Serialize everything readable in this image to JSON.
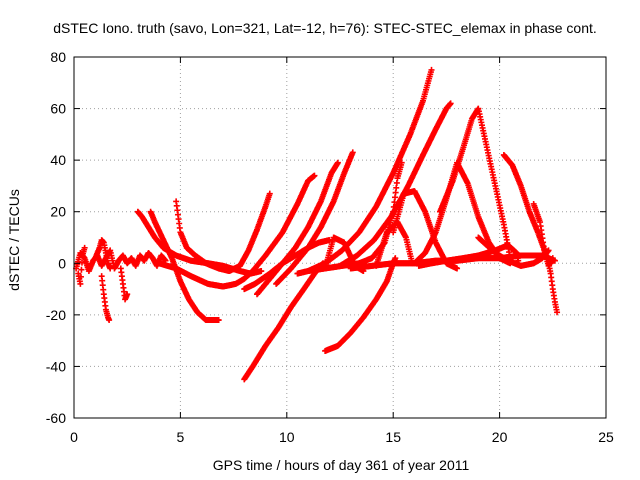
{
  "chart_data": {
    "type": "scatter",
    "title": "dSTEC Iono. truth (savo, Lon=321, Lat=-12, h=76): STEC-STEC_elemax in phase cont.",
    "xlabel": "GPS time / hours of day 361 of year 2011",
    "ylabel": "dSTEC  / TECUs",
    "xlim": [
      0,
      25
    ],
    "ylim": [
      -60,
      80
    ],
    "xticks": [
      0,
      5,
      10,
      15,
      20,
      25
    ],
    "yticks": [
      -60,
      -40,
      -20,
      0,
      20,
      40,
      60,
      80
    ],
    "grid": true,
    "marker": "+",
    "colors": {
      "series": "#ff0000",
      "grid": "#a0a0a0"
    },
    "series": [
      {
        "x": [
          0.1,
          0.3,
          0.5,
          0.7,
          0.9,
          1.1,
          1.3,
          1.5,
          1.7,
          1.9,
          2.1,
          2.3,
          2.5,
          2.7,
          2.9,
          3.1,
          3.3,
          3.5,
          3.7,
          3.9,
          4.1,
          4.3
        ],
        "y": [
          -2,
          4,
          2,
          -3,
          1,
          3,
          -1,
          2,
          5,
          -2,
          1,
          3,
          0,
          2,
          -1,
          3,
          1,
          4,
          2,
          -1,
          3,
          1
        ]
      },
      {
        "x": [
          0.2,
          0.3,
          0.4,
          0.5
        ],
        "y": [
          -4,
          -8,
          3,
          6
        ]
      },
      {
        "x": [
          1.3,
          1.4,
          1.5,
          1.6,
          1.65
        ],
        "y": [
          -5,
          -12,
          -18,
          -21,
          -22
        ]
      },
      {
        "x": [
          1.0,
          1.2,
          1.3,
          1.4,
          1.5,
          1.6,
          1.7
        ],
        "y": [
          2,
          6,
          9,
          8,
          4,
          0,
          -2
        ]
      },
      {
        "x": [
          2.2,
          2.3,
          2.4,
          2.5
        ],
        "y": [
          -2,
          -8,
          -14,
          -12
        ]
      },
      {
        "x": [
          3.0,
          3.2,
          3.5,
          3.8,
          4.2,
          4.8,
          5.5,
          6.3,
          7.0,
          7.8,
          8.3,
          8.8
        ],
        "y": [
          20,
          18,
          14,
          10,
          6,
          3,
          1,
          0,
          -1,
          -3,
          -4,
          -3
        ]
      },
      {
        "x": [
          3.6,
          3.8,
          4.2,
          4.6,
          5.0,
          5.4,
          5.8,
          6.2,
          6.6,
          6.8
        ],
        "y": [
          20,
          16,
          9,
          2,
          -7,
          -14,
          -19,
          -22,
          -22,
          -22
        ]
      },
      {
        "x": [
          4.8,
          5.0,
          5.3,
          5.7,
          6.2,
          6.8,
          7.3,
          7.8,
          8.2,
          8.6,
          9.0,
          9.2
        ],
        "y": [
          24,
          12,
          6,
          3,
          0,
          -2,
          -3,
          -1,
          5,
          13,
          22,
          27
        ]
      },
      {
        "x": [
          4.0,
          4.8,
          5.5,
          6.3,
          7.0,
          7.6,
          8.0,
          8.4,
          9.0,
          9.8,
          10.5,
          11.0,
          11.3
        ],
        "y": [
          0,
          -2,
          -5,
          -8,
          -9,
          -8,
          -6,
          -3,
          3,
          12,
          23,
          32,
          34
        ]
      },
      {
        "x": [
          8.0,
          8.4,
          9.0,
          9.6,
          10.2,
          10.8,
          11.3,
          11.7
        ],
        "y": [
          -45,
          -40,
          -32,
          -25,
          -17,
          -10,
          -4,
          0
        ]
      },
      {
        "x": [
          8.0,
          8.5,
          9.2,
          9.8,
          10.4,
          11.0,
          11.5,
          12.0
        ],
        "y": [
          -10,
          -8,
          -4,
          0,
          3,
          6,
          8,
          9
        ]
      },
      {
        "x": [
          8.6,
          9.2,
          9.8,
          10.4,
          11.0,
          11.6,
          12.1,
          12.4
        ],
        "y": [
          -12,
          -6,
          0,
          6,
          14,
          24,
          35,
          39
        ]
      },
      {
        "x": [
          9.5,
          10.2,
          11.0,
          11.6,
          12.2,
          12.7,
          13.1
        ],
        "y": [
          -8,
          -2,
          6,
          14,
          24,
          35,
          43
        ]
      },
      {
        "x": [
          11.8,
          12.4,
          13.0,
          13.6,
          14.2,
          14.7,
          15.0,
          15.1
        ],
        "y": [
          -34,
          -32,
          -27,
          -21,
          -14,
          -7,
          0,
          2
        ]
      },
      {
        "x": [
          10.5,
          11.0,
          11.8,
          12.6,
          13.4,
          14.0,
          14.6,
          15.0,
          15.2,
          15.4
        ],
        "y": [
          -4,
          -3,
          -2,
          -1,
          0,
          2,
          8,
          20,
          33,
          39
        ]
      },
      {
        "x": [
          11.0,
          11.8,
          12.6,
          13.4,
          14.2,
          15.0,
          15.8,
          16.4,
          16.8
        ],
        "y": [
          -3,
          0,
          5,
          12,
          22,
          35,
          50,
          63,
          75
        ]
      },
      {
        "x": [
          12.5,
          13.3,
          14.1,
          14.9,
          15.7,
          16.4,
          17.0,
          17.5,
          17.7
        ],
        "y": [
          -1,
          3,
          9,
          18,
          30,
          42,
          52,
          60,
          62
        ]
      },
      {
        "x": [
          11.8,
          12.2,
          12.7,
          13.2,
          13.6
        ],
        "y": [
          -2,
          10,
          8,
          -1,
          -3
        ]
      },
      {
        "x": [
          14.2,
          14.7,
          15.2,
          15.6,
          15.9
        ],
        "y": [
          -1,
          12,
          16,
          10,
          0
        ]
      },
      {
        "x": [
          15.0,
          15.5,
          16.0,
          16.5,
          17.0,
          17.5,
          18.0
        ],
        "y": [
          12,
          27,
          28,
          20,
          8,
          0,
          -2
        ]
      },
      {
        "x": [
          16.0,
          16.5,
          17.0,
          17.5,
          18.0,
          18.5,
          19.0,
          19.5,
          20.0,
          20.5
        ],
        "y": [
          0,
          4,
          12,
          25,
          39,
          31,
          18,
          8,
          2,
          0
        ]
      },
      {
        "x": [
          17.2,
          17.8,
          18.3,
          18.7,
          19.0,
          19.4,
          19.8,
          20.2,
          20.5
        ],
        "y": [
          20,
          32,
          45,
          56,
          60,
          45,
          30,
          15,
          2
        ]
      },
      {
        "x": [
          16.2,
          16.8,
          17.5,
          18.3,
          19.0,
          19.8,
          20.4,
          20.8,
          20.9
        ],
        "y": [
          -1,
          0,
          1,
          2,
          3,
          5,
          7,
          4,
          0
        ]
      },
      {
        "x": [
          20.2,
          20.6,
          21.0,
          21.4,
          21.8,
          22.2,
          22.4
        ],
        "y": [
          42,
          38,
          30,
          20,
          12,
          3,
          0
        ]
      },
      {
        "x": [
          19.0,
          19.8,
          20.4,
          21.0,
          21.6,
          22.0,
          22.3
        ],
        "y": [
          10,
          4,
          1,
          -1,
          0,
          2,
          5
        ]
      },
      {
        "x": [
          21.6,
          21.9,
          22.1,
          22.3,
          22.5
        ],
        "y": [
          23,
          16,
          5,
          -1,
          2
        ]
      },
      {
        "x": [
          22.3,
          22.4,
          22.5,
          22.6,
          22.7
        ],
        "y": [
          0,
          -4,
          -10,
          -15,
          -19
        ]
      },
      {
        "x": [
          13.0,
          14.0,
          15.0,
          16.0,
          17.0,
          18.0,
          19.0,
          20.0,
          21.0,
          22.0,
          22.6
        ],
        "y": [
          -2,
          -1,
          0,
          0,
          1,
          1,
          2,
          2,
          3,
          3,
          1
        ]
      }
    ]
  }
}
